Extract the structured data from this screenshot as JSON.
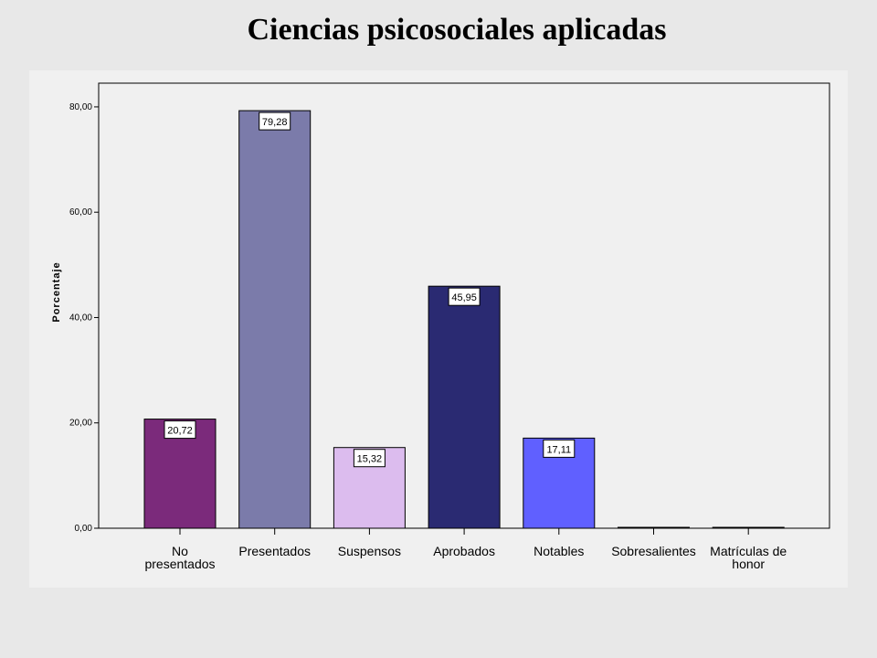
{
  "title": "Ciencias psicosociales aplicadas",
  "chart_data": {
    "type": "bar",
    "categories": [
      [
        "No",
        "presentados"
      ],
      [
        "Presentados"
      ],
      [
        "Suspensos"
      ],
      [
        "Aprobados"
      ],
      [
        "Notables"
      ],
      [
        "Sobresalientes"
      ],
      [
        "Matrículas de",
        "honor"
      ]
    ],
    "values": [
      20.72,
      79.28,
      15.32,
      45.95,
      17.11,
      0,
      0
    ],
    "value_labels": [
      "20,72",
      "79,28",
      "15,32",
      "45,95",
      "17,11",
      "",
      ""
    ],
    "bar_colors": [
      "#7b2a7b",
      "#7b7baa",
      "#dcbcee",
      "#2a2a72",
      "#6060ff",
      "#ffffff",
      "#ffffff"
    ],
    "ylabel": "Porcentaje",
    "ylim": [
      0,
      84.5
    ],
    "yticks": [
      0,
      20,
      40,
      60,
      80
    ],
    "ytick_labels": [
      "0,00",
      "20,00",
      "40,00",
      "60,00",
      "80,00"
    ],
    "grid": false
  }
}
